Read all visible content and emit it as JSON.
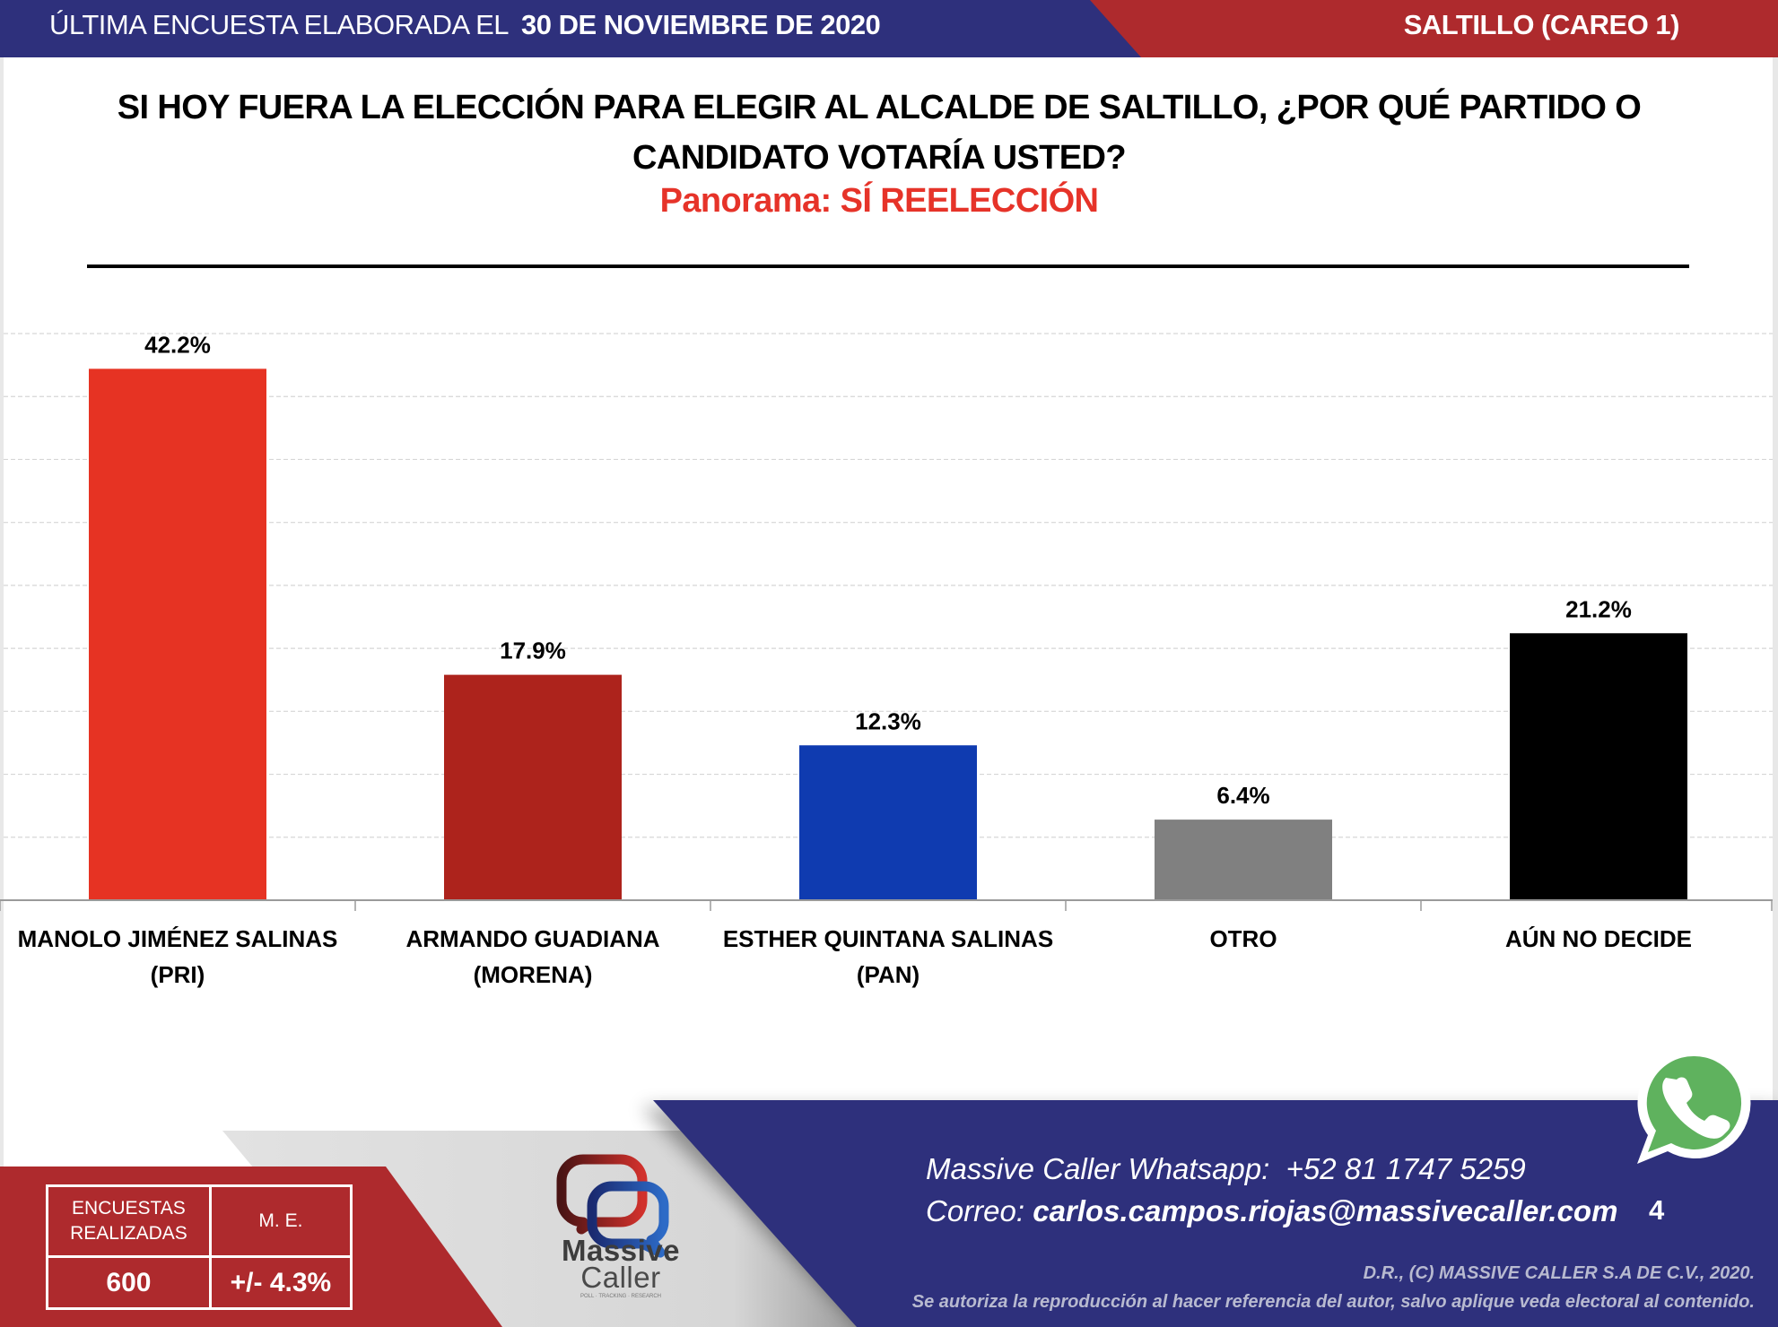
{
  "header": {
    "date_prefix": "ÚLTIMA ENCUESTA ELABORADA EL",
    "date": "30 DE NOVIEMBRE DE 2020",
    "location": "SALTILLO (CAREO 1)"
  },
  "title": {
    "question_line1": "SI HOY FUERA LA ELECCIÓN PARA ELEGIR AL ALCALDE DE SALTILLO, ¿POR QUÉ PARTIDO O",
    "question_line2": "CANDIDATO VOTARÍA USTED?",
    "panorama": "Panorama: SÍ REELECCIÓN"
  },
  "colors": {
    "header_blue": "#2e307c",
    "header_red": "#ae2a2d",
    "panorama_red": "#e63329"
  },
  "chart_data": {
    "type": "bar",
    "title": "SI HOY FUERA LA ELECCIÓN PARA ELEGIR AL ALCALDE DE SALTILLO, ¿POR QUÉ PARTIDO O CANDIDATO VOTARÍA USTED?",
    "subtitle": "Panorama: SÍ REELECCIÓN",
    "xlabel": "",
    "ylabel": "",
    "ylim": [
      0,
      45
    ],
    "ytick_step": 5,
    "grid": true,
    "y_axis_visible": false,
    "legend": "none",
    "categories": [
      {
        "line1": "MANOLO JIMÉNEZ SALINAS",
        "line2": "(PRI)"
      },
      {
        "line1": "ARMANDO GUADIANA",
        "line2": "(MORENA)"
      },
      {
        "line1": "ESTHER QUINTANA SALINAS",
        "line2": "(PAN)"
      },
      {
        "line1": "OTRO",
        "line2": ""
      },
      {
        "line1": "AÚN NO DECIDE",
        "line2": ""
      }
    ],
    "values": [
      42.2,
      17.9,
      12.3,
      6.4,
      21.2
    ],
    "labels": [
      "42.2%",
      "17.9%",
      "12.3%",
      "6.4%",
      "21.2%"
    ],
    "bar_colors": [
      "#e63323",
      "#ad231c",
      "#0f3bb0",
      "#808080",
      "#000000"
    ]
  },
  "stats": {
    "surveys_label_line1": "ENCUESTAS",
    "surveys_label_line2": "REALIZADAS",
    "surveys_value": "600",
    "margin_label": "M. E.",
    "margin_value": "+/- 4.3%"
  },
  "brand": {
    "name_line1": "Massive",
    "name_line2": "Caller",
    "tagline": "POLL · TRACKING · RESEARCH"
  },
  "contact": {
    "whatsapp_label": "Massive Caller Whatsapp:",
    "whatsapp_number": "+52 81 1747 5259",
    "email_label": "Correo:",
    "email": "carlos.campos.riojas@massivecaller.com",
    "page_number": "4"
  },
  "footer": {
    "copyright": "D.R., (C) MASSIVE CALLER S.A DE C.V., 2020.",
    "legal": "Se autoriza la reproducción al hacer referencia del autor, salvo aplique veda electoral al contenido."
  },
  "icons": {
    "whatsapp": "whatsapp-icon",
    "logo": "massive-caller-logo-icon"
  }
}
